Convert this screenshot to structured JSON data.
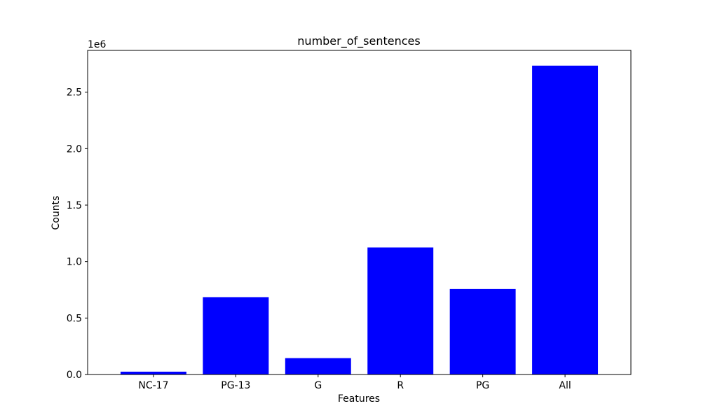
{
  "chart_data": {
    "type": "bar",
    "title": "number_of_sentences",
    "xlabel": "Features",
    "ylabel": "Counts",
    "categories": [
      "NC-17",
      "PG-13",
      "G",
      "R",
      "PG",
      "All"
    ],
    "values": [
      25000,
      685000,
      145000,
      1125000,
      757000,
      2735000
    ],
    "ylim": [
      0,
      2870000
    ],
    "y_ticks": [
      0,
      500000,
      1000000,
      1500000,
      2000000,
      2500000
    ],
    "y_tick_labels": [
      "0.0",
      "0.5",
      "1.0",
      "1.5",
      "2.0",
      "2.5"
    ],
    "y_offset_label": "1e6",
    "bar_color": "#0000ff",
    "grid": false,
    "legend": "none"
  }
}
